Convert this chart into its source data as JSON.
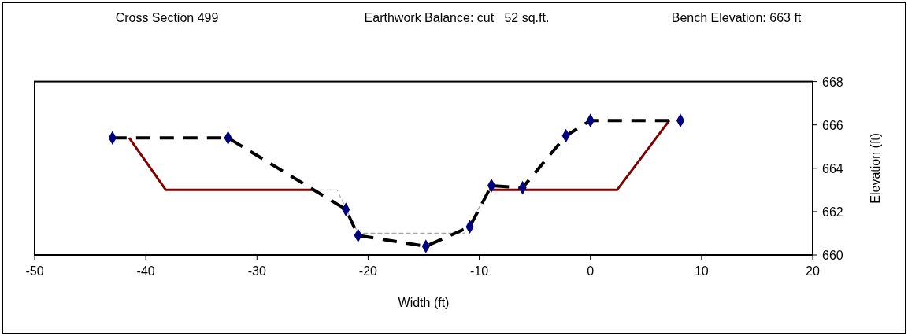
{
  "chart_data": {
    "type": "line",
    "title": "Cross Section 499",
    "annotations": [
      "Earthwork Balance: cut   52 sq.ft.",
      "Bench Elevation: 663 ft"
    ],
    "xlabel": "Width (ft)",
    "ylabel": "Elevation (ft)",
    "xlim": [
      -50,
      20
    ],
    "xticks": [
      -50,
      -40,
      -30,
      -20,
      -10,
      0,
      10,
      20
    ],
    "ylim": [
      660,
      668
    ],
    "yticks": [
      660,
      662,
      664,
      666,
      668
    ],
    "grid": false,
    "series": [
      {
        "color": "#800000",
        "line_style": "solid",
        "marker": "none",
        "x": [
          -41.5,
          -38.2,
          -25,
          -17,
          -9.1,
          2.4,
          7.1
        ],
        "values": [
          665.4,
          663,
          663,
          null,
          663,
          663,
          666.2
        ]
      },
      {
        "color": "#a6a6a6",
        "line_style": "dashed",
        "marker": "none",
        "x": [
          -25,
          -22.8,
          -20.9,
          -11.35,
          -9.1
        ],
        "values": [
          663,
          663,
          661,
          661,
          663
        ]
      },
      {
        "color": "#000000",
        "colors": [
          "#000080",
          "#000080",
          "#000080",
          "#000080",
          "#000080",
          "#000080",
          "#000080",
          "#000080",
          "#000080",
          "#000080",
          "#000080"
        ],
        "line_style": "dashed",
        "marker": "diamond",
        "x": [
          -43,
          -32.6,
          -22,
          -20.9,
          -14.8,
          -10.85,
          -8.9,
          -6.1,
          -2.2,
          0,
          8.1
        ],
        "values": [
          665.4,
          665.4,
          662.1,
          660.9,
          660.4,
          661.3,
          663.2,
          663.1,
          665.5,
          666.2,
          666.2
        ]
      }
    ]
  }
}
